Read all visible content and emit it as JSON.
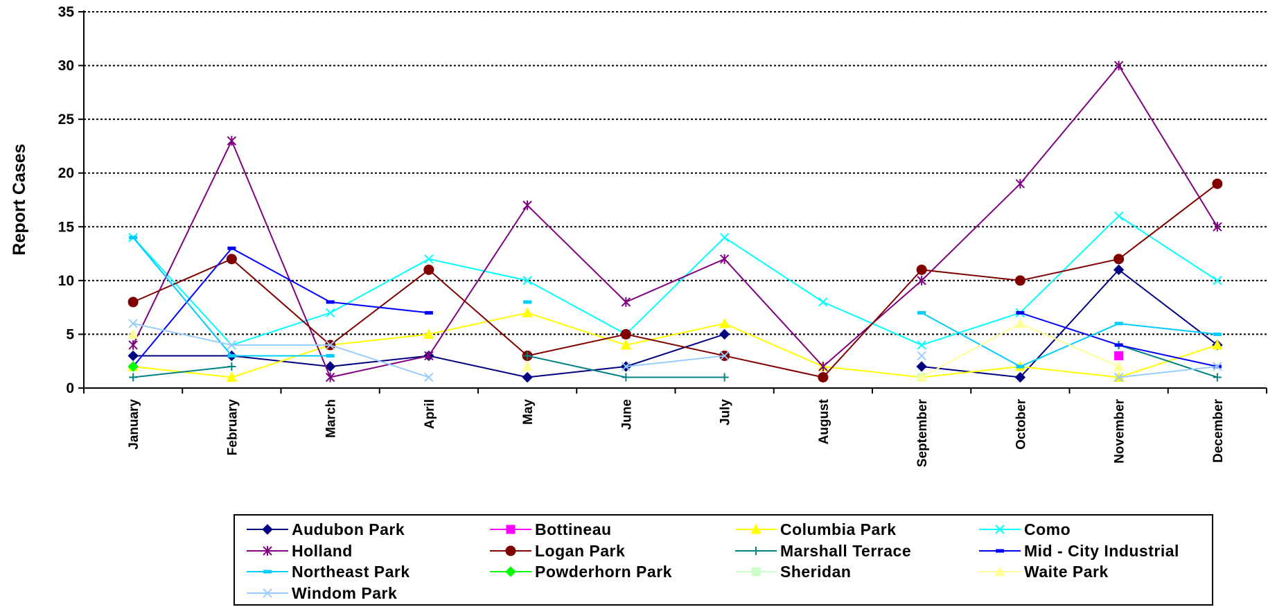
{
  "chart_data": {
    "type": "line",
    "title": "",
    "xlabel": "",
    "ylabel": "Report Cases",
    "ylim": [
      0,
      35
    ],
    "yticks": [
      0,
      5,
      10,
      15,
      20,
      25,
      30,
      35
    ],
    "grid": "horizontal dotted",
    "legend_position": "bottom",
    "categories": [
      "January",
      "February",
      "March",
      "April",
      "May",
      "June",
      "July",
      "August",
      "September",
      "October",
      "November",
      "December"
    ],
    "series": [
      {
        "name": "Audubon Park",
        "color": "#000080",
        "marker": "diamond",
        "values": [
          3,
          3,
          2,
          3,
          1,
          2,
          5,
          null,
          2,
          1,
          11,
          4
        ]
      },
      {
        "name": "Bottineau",
        "color": "#FF00FF",
        "marker": "square",
        "values": [
          null,
          null,
          null,
          null,
          null,
          null,
          null,
          null,
          null,
          null,
          3,
          null
        ]
      },
      {
        "name": "Columbia Park",
        "color": "#FFFF00",
        "marker": "triangle",
        "values": [
          2,
          1,
          4,
          5,
          7,
          4,
          6,
          2,
          1,
          2,
          1,
          4
        ]
      },
      {
        "name": "Como",
        "color": "#00FFFF",
        "marker": "x",
        "values": [
          14,
          4,
          7,
          12,
          10,
          5,
          14,
          8,
          4,
          7,
          16,
          10
        ]
      },
      {
        "name": "Holland",
        "color": "#800080",
        "marker": "star",
        "values": [
          4,
          23,
          1,
          3,
          17,
          8,
          12,
          2,
          10,
          19,
          30,
          15
        ]
      },
      {
        "name": "Logan Park",
        "color": "#800000",
        "marker": "circle",
        "values": [
          8,
          12,
          4,
          11,
          3,
          5,
          3,
          1,
          11,
          10,
          12,
          19
        ]
      },
      {
        "name": "Marshall Terrace",
        "color": "#008080",
        "marker": "plus",
        "values": [
          1,
          2,
          null,
          null,
          3,
          1,
          1,
          null,
          null,
          null,
          4,
          1
        ]
      },
      {
        "name": "Mid - City Industrial",
        "color": "#0000FF",
        "marker": "dash",
        "values": [
          2,
          13,
          8,
          7,
          null,
          null,
          null,
          null,
          null,
          7,
          4,
          2
        ]
      },
      {
        "name": "Northeast Park",
        "color": "#00CCFF",
        "marker": "dash",
        "values": [
          14,
          3,
          3,
          null,
          8,
          null,
          null,
          null,
          7,
          2,
          6,
          5
        ]
      },
      {
        "name": "Powderhorn Park",
        "color": "#00FF00",
        "marker": "diamond",
        "values": [
          2,
          null,
          null,
          null,
          null,
          null,
          null,
          null,
          null,
          null,
          null,
          null
        ]
      },
      {
        "name": "Sheridan",
        "color": "#CCFFCC",
        "marker": "square",
        "values": [
          null,
          null,
          null,
          null,
          null,
          null,
          null,
          null,
          1,
          null,
          null,
          null
        ]
      },
      {
        "name": "Waite Park",
        "color": "#FFFF99",
        "marker": "triangle",
        "values": [
          5,
          null,
          null,
          null,
          2,
          null,
          null,
          null,
          1,
          6,
          2,
          null
        ]
      },
      {
        "name": "Windom Park",
        "color": "#99CCFF",
        "marker": "x",
        "values": [
          6,
          4,
          4,
          1,
          null,
          2,
          3,
          null,
          3,
          null,
          1,
          2
        ]
      }
    ]
  }
}
